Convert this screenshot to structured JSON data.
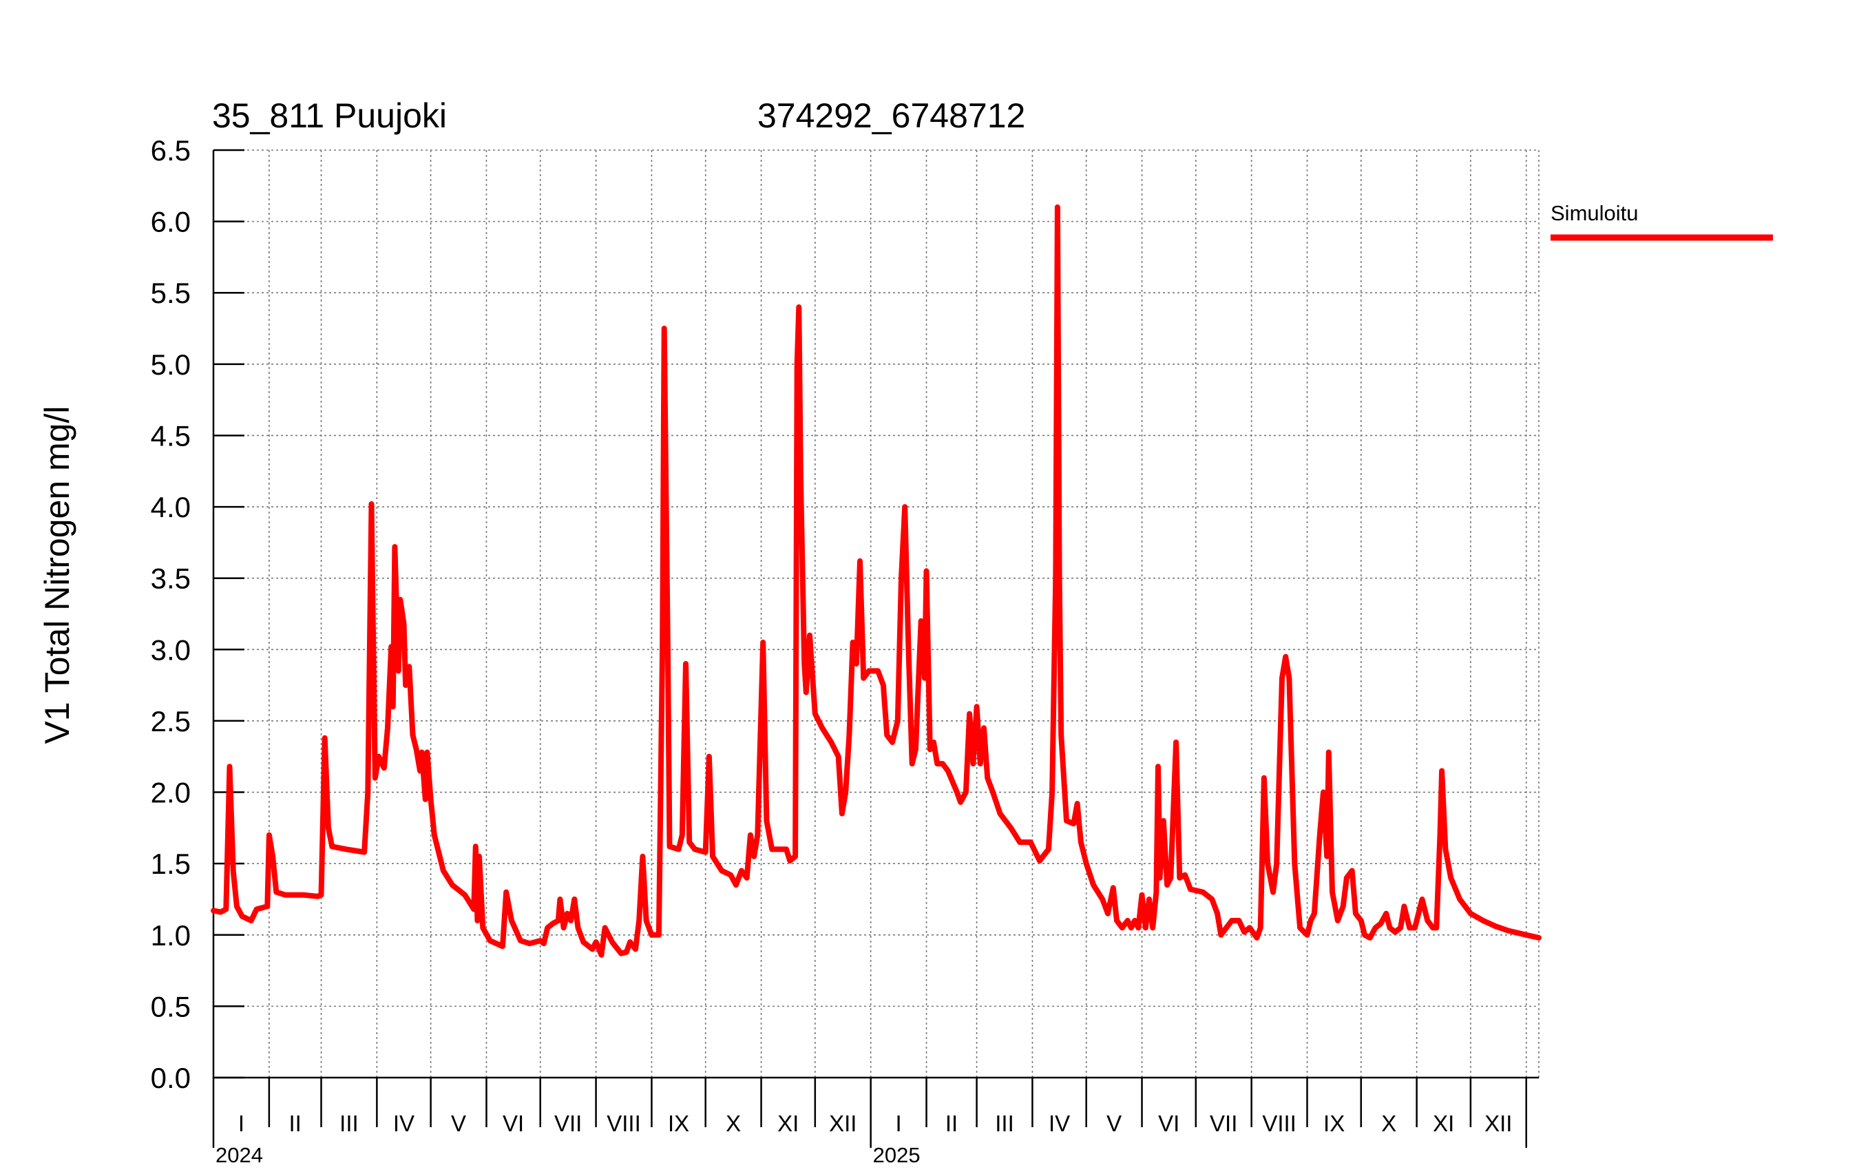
{
  "chart_data": {
    "type": "line",
    "title": "35_811 Puujoki",
    "subtitle": "374292_6748712",
    "ylabel": "V1 Total Nitrogen mg/l",
    "xlabel": "",
    "ylim": [
      0,
      6.5
    ],
    "yticks": [
      "0.0",
      "0.5",
      "1.0",
      "1.5",
      "2.0",
      "2.5",
      "3.0",
      "3.5",
      "4.0",
      "4.5",
      "5.0",
      "5.5",
      "6.0",
      "6.5"
    ],
    "x_range": [
      "2024-01-01",
      "2026-01-08"
    ],
    "month_labels": [
      "I",
      "II",
      "III",
      "IV",
      "V",
      "VI",
      "VII",
      "VIII",
      "IX",
      "X",
      "XI",
      "XII"
    ],
    "year_labels": [
      "2024",
      "2025"
    ],
    "grid": true,
    "legend_position": "top-right",
    "series": [
      {
        "name": "Simuloitu",
        "color": "#ff0000",
        "points": [
          [
            "2024-01-01",
            1.17
          ],
          [
            "2024-01-05",
            1.16
          ],
          [
            "2024-01-08",
            1.18
          ],
          [
            "2024-01-10",
            2.18
          ],
          [
            "2024-01-12",
            1.45
          ],
          [
            "2024-01-14",
            1.2
          ],
          [
            "2024-01-17",
            1.13
          ],
          [
            "2024-01-22",
            1.1
          ],
          [
            "2024-01-25",
            1.18
          ],
          [
            "2024-01-31",
            1.2
          ],
          [
            "2024-02-01",
            1.7
          ],
          [
            "2024-02-03",
            1.55
          ],
          [
            "2024-02-05",
            1.3
          ],
          [
            "2024-02-10",
            1.28
          ],
          [
            "2024-02-20",
            1.28
          ],
          [
            "2024-02-28",
            1.27
          ],
          [
            "2024-03-01",
            1.28
          ],
          [
            "2024-03-03",
            2.38
          ],
          [
            "2024-03-05",
            1.75
          ],
          [
            "2024-03-07",
            1.62
          ],
          [
            "2024-03-15",
            1.6
          ],
          [
            "2024-03-25",
            1.58
          ],
          [
            "2024-03-27",
            2.0
          ],
          [
            "2024-03-29",
            4.02
          ],
          [
            "2024-03-31",
            2.1
          ],
          [
            "2024-04-02",
            2.25
          ],
          [
            "2024-04-05",
            2.17
          ],
          [
            "2024-04-07",
            2.45
          ],
          [
            "2024-04-09",
            3.02
          ],
          [
            "2024-04-10",
            2.6
          ],
          [
            "2024-04-11",
            3.72
          ],
          [
            "2024-04-13",
            2.85
          ],
          [
            "2024-04-14",
            3.35
          ],
          [
            "2024-04-16",
            3.18
          ],
          [
            "2024-04-17",
            2.75
          ],
          [
            "2024-04-19",
            2.88
          ],
          [
            "2024-04-21",
            2.4
          ],
          [
            "2024-04-23",
            2.3
          ],
          [
            "2024-04-25",
            2.15
          ],
          [
            "2024-04-26",
            2.28
          ],
          [
            "2024-04-28",
            1.95
          ],
          [
            "2024-04-29",
            2.28
          ],
          [
            "2024-05-01",
            1.95
          ],
          [
            "2024-05-03",
            1.7
          ],
          [
            "2024-05-08",
            1.45
          ],
          [
            "2024-05-13",
            1.35
          ],
          [
            "2024-05-20",
            1.28
          ],
          [
            "2024-05-25",
            1.18
          ],
          [
            "2024-05-26",
            1.62
          ],
          [
            "2024-05-27",
            1.1
          ],
          [
            "2024-05-28",
            1.55
          ],
          [
            "2024-05-30",
            1.05
          ],
          [
            "2024-06-03",
            0.96
          ],
          [
            "2024-06-10",
            0.92
          ],
          [
            "2024-06-12",
            1.3
          ],
          [
            "2024-06-15",
            1.1
          ],
          [
            "2024-06-20",
            0.96
          ],
          [
            "2024-06-25",
            0.94
          ],
          [
            "2024-07-01",
            0.96
          ],
          [
            "2024-07-03",
            0.94
          ],
          [
            "2024-07-05",
            1.05
          ],
          [
            "2024-07-08",
            1.08
          ],
          [
            "2024-07-11",
            1.1
          ],
          [
            "2024-07-12",
            1.25
          ],
          [
            "2024-07-14",
            1.05
          ],
          [
            "2024-07-16",
            1.15
          ],
          [
            "2024-07-18",
            1.1
          ],
          [
            "2024-07-20",
            1.25
          ],
          [
            "2024-07-22",
            1.05
          ],
          [
            "2024-07-25",
            0.95
          ],
          [
            "2024-07-30",
            0.9
          ],
          [
            "2024-08-01",
            0.95
          ],
          [
            "2024-08-04",
            0.86
          ],
          [
            "2024-08-06",
            1.05
          ],
          [
            "2024-08-10",
            0.95
          ],
          [
            "2024-08-15",
            0.87
          ],
          [
            "2024-08-18",
            0.88
          ],
          [
            "2024-08-20",
            0.95
          ],
          [
            "2024-08-23",
            0.9
          ],
          [
            "2024-08-25",
            1.1
          ],
          [
            "2024-08-27",
            1.55
          ],
          [
            "2024-08-29",
            1.1
          ],
          [
            "2024-09-01",
            1.0
          ],
          [
            "2024-09-05",
            1.0
          ],
          [
            "2024-09-07",
            3.0
          ],
          [
            "2024-09-08",
            5.25
          ],
          [
            "2024-09-10",
            3.0
          ],
          [
            "2024-09-11",
            1.62
          ],
          [
            "2024-09-16",
            1.6
          ],
          [
            "2024-09-18",
            1.7
          ],
          [
            "2024-09-20",
            2.9
          ],
          [
            "2024-09-22",
            1.65
          ],
          [
            "2024-09-25",
            1.6
          ],
          [
            "2024-10-01",
            1.58
          ],
          [
            "2024-10-03",
            2.25
          ],
          [
            "2024-10-05",
            1.55
          ],
          [
            "2024-10-10",
            1.45
          ],
          [
            "2024-10-15",
            1.42
          ],
          [
            "2024-10-18",
            1.35
          ],
          [
            "2024-10-21",
            1.45
          ],
          [
            "2024-10-24",
            1.4
          ],
          [
            "2024-10-26",
            1.7
          ],
          [
            "2024-10-28",
            1.55
          ],
          [
            "2024-10-30",
            1.7
          ],
          [
            "2024-11-02",
            3.05
          ],
          [
            "2024-11-04",
            1.8
          ],
          [
            "2024-11-07",
            1.6
          ],
          [
            "2024-11-15",
            1.6
          ],
          [
            "2024-11-17",
            1.52
          ],
          [
            "2024-11-20",
            1.55
          ],
          [
            "2024-11-21",
            5.0
          ],
          [
            "2024-11-22",
            5.4
          ],
          [
            "2024-11-23",
            4.2
          ],
          [
            "2024-11-25",
            2.9
          ],
          [
            "2024-11-26",
            2.7
          ],
          [
            "2024-11-28",
            3.1
          ],
          [
            "2024-12-01",
            2.55
          ],
          [
            "2024-12-05",
            2.45
          ],
          [
            "2024-12-10",
            2.35
          ],
          [
            "2024-12-14",
            2.25
          ],
          [
            "2024-12-16",
            1.85
          ],
          [
            "2024-12-18",
            2.0
          ],
          [
            "2024-12-20",
            2.4
          ],
          [
            "2024-12-22",
            3.05
          ],
          [
            "2024-12-24",
            2.9
          ],
          [
            "2024-12-26",
            3.62
          ],
          [
            "2024-12-28",
            2.8
          ],
          [
            "2024-12-31",
            2.85
          ],
          [
            "2025-01-05",
            2.85
          ],
          [
            "2025-01-08",
            2.75
          ],
          [
            "2025-01-10",
            2.4
          ],
          [
            "2025-01-13",
            2.35
          ],
          [
            "2025-01-16",
            2.5
          ],
          [
            "2025-01-18",
            3.5
          ],
          [
            "2025-01-20",
            4.0
          ],
          [
            "2025-01-22",
            3.0
          ],
          [
            "2025-01-24",
            2.2
          ],
          [
            "2025-01-26",
            2.3
          ],
          [
            "2025-01-29",
            3.2
          ],
          [
            "2025-01-31",
            2.8
          ],
          [
            "2025-02-01",
            3.55
          ],
          [
            "2025-02-03",
            2.3
          ],
          [
            "2025-02-05",
            2.35
          ],
          [
            "2025-02-07",
            2.2
          ],
          [
            "2025-02-10",
            2.2
          ],
          [
            "2025-02-13",
            2.15
          ],
          [
            "2025-02-18",
            2.0
          ],
          [
            "2025-02-20",
            1.93
          ],
          [
            "2025-02-23",
            2.0
          ],
          [
            "2025-02-25",
            2.55
          ],
          [
            "2025-02-27",
            2.2
          ],
          [
            "2025-03-01",
            2.6
          ],
          [
            "2025-03-03",
            2.2
          ],
          [
            "2025-03-05",
            2.45
          ],
          [
            "2025-03-07",
            2.1
          ],
          [
            "2025-03-10",
            2.0
          ],
          [
            "2025-03-14",
            1.85
          ],
          [
            "2025-03-20",
            1.75
          ],
          [
            "2025-03-25",
            1.65
          ],
          [
            "2025-03-31",
            1.65
          ],
          [
            "2025-04-05",
            1.52
          ],
          [
            "2025-04-10",
            1.6
          ],
          [
            "2025-04-12",
            2.0
          ],
          [
            "2025-04-14",
            3.5
          ],
          [
            "2025-04-15",
            6.1
          ],
          [
            "2025-04-16",
            3.5
          ],
          [
            "2025-04-17",
            2.4
          ],
          [
            "2025-04-20",
            1.8
          ],
          [
            "2025-04-24",
            1.78
          ],
          [
            "2025-04-26",
            1.92
          ],
          [
            "2025-04-28",
            1.65
          ],
          [
            "2025-05-01",
            1.5
          ],
          [
            "2025-05-05",
            1.35
          ],
          [
            "2025-05-10",
            1.25
          ],
          [
            "2025-05-13",
            1.15
          ],
          [
            "2025-05-16",
            1.33
          ],
          [
            "2025-05-18",
            1.1
          ],
          [
            "2025-05-21",
            1.05
          ],
          [
            "2025-05-24",
            1.1
          ],
          [
            "2025-05-26",
            1.05
          ],
          [
            "2025-05-28",
            1.1
          ],
          [
            "2025-05-30",
            1.05
          ],
          [
            "2025-06-01",
            1.28
          ],
          [
            "2025-06-03",
            1.05
          ],
          [
            "2025-06-05",
            1.25
          ],
          [
            "2025-06-07",
            1.05
          ],
          [
            "2025-06-09",
            1.3
          ],
          [
            "2025-06-10",
            2.18
          ],
          [
            "2025-06-11",
            1.4
          ],
          [
            "2025-06-13",
            1.8
          ],
          [
            "2025-06-15",
            1.35
          ],
          [
            "2025-06-17",
            1.4
          ],
          [
            "2025-06-20",
            2.35
          ],
          [
            "2025-06-22",
            1.4
          ],
          [
            "2025-06-25",
            1.42
          ],
          [
            "2025-06-28",
            1.32
          ],
          [
            "2025-07-05",
            1.3
          ],
          [
            "2025-07-10",
            1.25
          ],
          [
            "2025-07-13",
            1.15
          ],
          [
            "2025-07-15",
            1.0
          ],
          [
            "2025-07-18",
            1.05
          ],
          [
            "2025-07-21",
            1.1
          ],
          [
            "2025-07-25",
            1.1
          ],
          [
            "2025-07-28",
            1.02
          ],
          [
            "2025-07-31",
            1.05
          ],
          [
            "2025-08-04",
            0.98
          ],
          [
            "2025-08-06",
            1.05
          ],
          [
            "2025-08-08",
            2.1
          ],
          [
            "2025-08-10",
            1.5
          ],
          [
            "2025-08-13",
            1.3
          ],
          [
            "2025-08-15",
            1.5
          ],
          [
            "2025-08-18",
            2.8
          ],
          [
            "2025-08-20",
            2.95
          ],
          [
            "2025-08-22",
            2.8
          ],
          [
            "2025-08-25",
            1.5
          ],
          [
            "2025-08-28",
            1.05
          ],
          [
            "2025-09-01",
            1.0
          ],
          [
            "2025-09-03",
            1.1
          ],
          [
            "2025-09-05",
            1.15
          ],
          [
            "2025-09-08",
            1.7
          ],
          [
            "2025-09-10",
            2.0
          ],
          [
            "2025-09-12",
            1.55
          ],
          [
            "2025-09-13",
            2.28
          ],
          [
            "2025-09-15",
            1.3
          ],
          [
            "2025-09-18",
            1.1
          ],
          [
            "2025-09-21",
            1.2
          ],
          [
            "2025-09-23",
            1.4
          ],
          [
            "2025-09-26",
            1.45
          ],
          [
            "2025-09-28",
            1.15
          ],
          [
            "2025-10-01",
            1.1
          ],
          [
            "2025-10-03",
            1.0
          ],
          [
            "2025-10-06",
            0.98
          ],
          [
            "2025-10-09",
            1.05
          ],
          [
            "2025-10-12",
            1.08
          ],
          [
            "2025-10-15",
            1.15
          ],
          [
            "2025-10-17",
            1.05
          ],
          [
            "2025-10-20",
            1.02
          ],
          [
            "2025-10-23",
            1.05
          ],
          [
            "2025-10-25",
            1.2
          ],
          [
            "2025-10-28",
            1.05
          ],
          [
            "2025-10-31",
            1.05
          ],
          [
            "2025-11-04",
            1.25
          ],
          [
            "2025-11-07",
            1.1
          ],
          [
            "2025-11-10",
            1.05
          ],
          [
            "2025-11-12",
            1.05
          ],
          [
            "2025-11-14",
            1.7
          ],
          [
            "2025-11-15",
            2.15
          ],
          [
            "2025-11-17",
            1.6
          ],
          [
            "2025-11-20",
            1.4
          ],
          [
            "2025-11-25",
            1.25
          ],
          [
            "2025-12-01",
            1.15
          ],
          [
            "2025-12-08",
            1.1
          ],
          [
            "2025-12-15",
            1.06
          ],
          [
            "2025-12-22",
            1.03
          ],
          [
            "2026-01-01",
            1.0
          ],
          [
            "2026-01-08",
            0.98
          ]
        ]
      }
    ]
  }
}
